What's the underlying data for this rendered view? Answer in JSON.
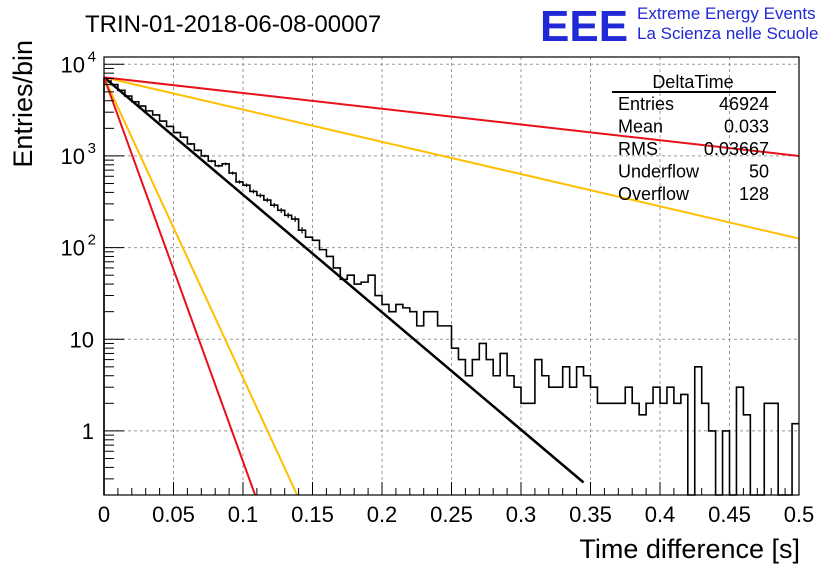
{
  "logo": {
    "mark": "EEE",
    "line1": "Extreme Energy Events",
    "line2": "La Scienza nelle Scuole",
    "color": "#1f29d6"
  },
  "stats": {
    "title": "DeltaTime",
    "rows": [
      {
        "label": "Entries",
        "value": "46924"
      },
      {
        "label": "Mean",
        "value": "0.033"
      },
      {
        "label": "RMS",
        "value": "0.03667"
      },
      {
        "label": "Underflow",
        "value": "50"
      },
      {
        "label": "Overflow",
        "value": "128"
      }
    ]
  },
  "chart_data": {
    "type": "line",
    "title": "TRIN-01-2018-06-08-00007",
    "xlabel": "Time difference [s]",
    "ylabel": "Entries/bin",
    "xlim": [
      0,
      0.5
    ],
    "ylim": [
      0.2,
      12000
    ],
    "y_scale": "log",
    "grid": true,
    "x_ticks": [
      {
        "value": 0,
        "label": "0"
      },
      {
        "value": 0.05,
        "label": "0.05"
      },
      {
        "value": 0.1,
        "label": "0.1"
      },
      {
        "value": 0.15,
        "label": "0.15"
      },
      {
        "value": 0.2,
        "label": "0.2"
      },
      {
        "value": 0.25,
        "label": "0.25"
      },
      {
        "value": 0.3,
        "label": "0.3"
      },
      {
        "value": 0.35,
        "label": "0.35"
      },
      {
        "value": 0.4,
        "label": "0.4"
      },
      {
        "value": 0.45,
        "label": "0.45"
      },
      {
        "value": 0.5,
        "label": "0.5"
      }
    ],
    "y_ticks": [
      {
        "value": 1,
        "label": "1"
      },
      {
        "value": 10,
        "label": "10"
      },
      {
        "value": 100,
        "label": "10",
        "exp": "2"
      },
      {
        "value": 1000,
        "label": "10",
        "exp": "3"
      },
      {
        "value": 10000,
        "label": "10",
        "exp": "4"
      }
    ],
    "histogram": {
      "bin_width": 0.005,
      "color": "#000000",
      "values": [
        7000,
        6000,
        5200,
        4500,
        3900,
        3500,
        3100,
        2800,
        2400,
        2100,
        1800,
        1600,
        1350,
        1150,
        1000,
        880,
        780,
        820,
        650,
        520,
        480,
        410,
        370,
        330,
        290,
        255,
        225,
        205,
        155,
        130,
        120,
        95,
        80,
        60,
        45,
        50,
        40,
        42,
        50,
        30,
        24,
        20,
        24,
        22,
        20,
        14,
        20,
        20,
        14,
        14,
        8,
        6,
        4,
        6,
        9,
        6,
        4,
        7,
        4,
        3,
        2,
        2,
        6,
        4,
        3,
        3,
        5,
        3,
        5,
        4,
        3,
        2,
        2,
        2,
        2,
        3,
        2,
        1.5,
        2,
        3,
        2,
        3,
        2,
        2.5,
        0.2,
        5,
        2,
        1,
        0.2,
        1,
        0.2,
        3,
        1.5,
        0.2,
        0.2,
        2,
        2,
        0.2,
        0.2,
        1.2
      ]
    },
    "series": [
      {
        "color": "#000000",
        "y0": 7200,
        "slope": -29.5,
        "x_end": 0.345,
        "width": 2.5
      },
      {
        "color": "#ffbf00",
        "y0": 7200,
        "slope": -8.1,
        "x_end": 0.5,
        "width": 2
      },
      {
        "color": "#ffbf00",
        "y0": 7200,
        "slope": -75.5,
        "x_end": 0.2,
        "width": 2
      },
      {
        "color": "#e8101a",
        "y0": 7200,
        "slope": -3.95,
        "x_end": 0.5,
        "width": 2
      },
      {
        "color": "#e8101a",
        "y0": 7200,
        "slope": -96.5,
        "x_end": 0.2,
        "width": 2
      }
    ]
  }
}
